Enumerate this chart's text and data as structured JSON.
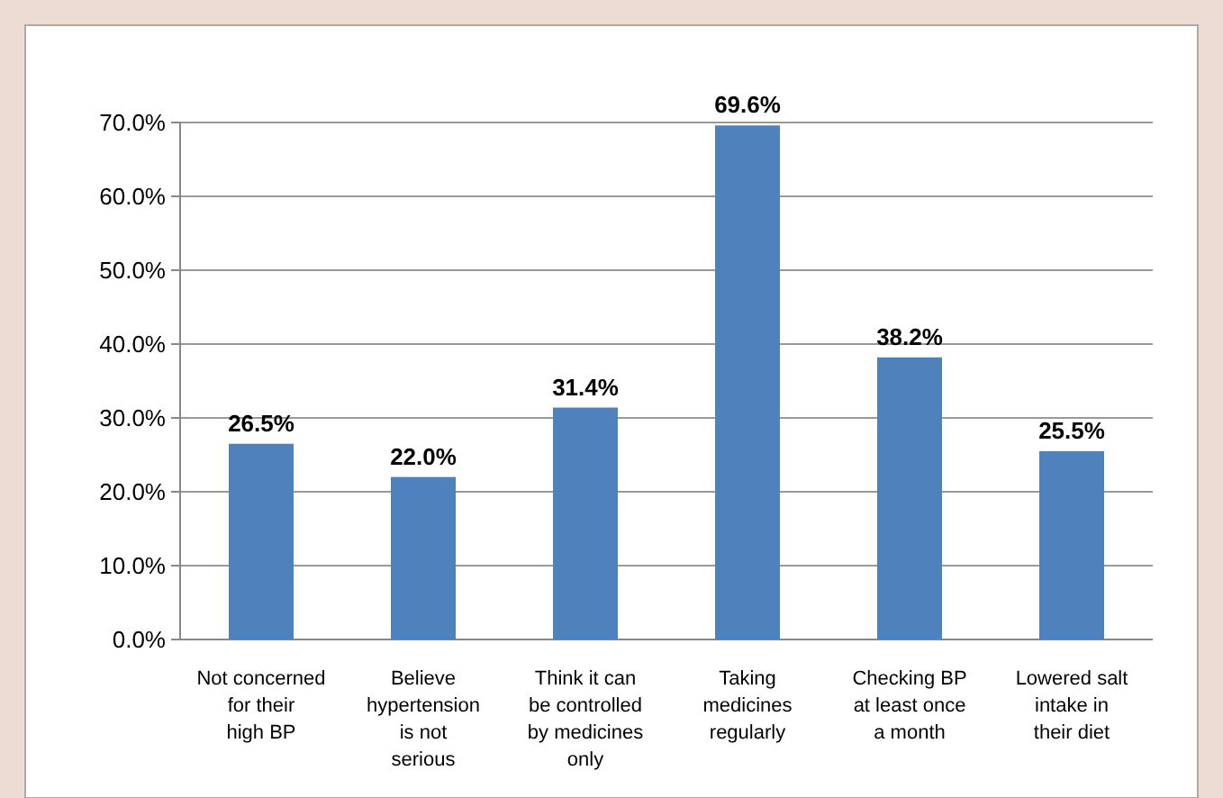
{
  "chart_data": {
    "type": "bar",
    "categories": [
      "Not concerned for their high BP",
      "Believe hypertension is not serious",
      "Think it can be controlled by medicines only",
      "Taking medicines regularly",
      "Checking BP at least once a month",
      "Lowered salt intake in their diet"
    ],
    "values": [
      26.5,
      22.0,
      31.4,
      69.6,
      38.2,
      25.5
    ],
    "value_labels": [
      "26.5%",
      "22.0%",
      "31.4%",
      "69.6%",
      "38.2%",
      "25.5%"
    ],
    "color": "#4f81bd",
    "ylim": [
      0,
      70
    ],
    "yticks": [
      {
        "value": 0,
        "label": "0.0%"
      },
      {
        "value": 10,
        "label": "10.0%"
      },
      {
        "value": 20,
        "label": "20.0%"
      },
      {
        "value": 30,
        "label": "30.0%"
      },
      {
        "value": 40,
        "label": "40.0%"
      },
      {
        "value": 50,
        "label": "50.0%"
      },
      {
        "value": 60,
        "label": "60.0%"
      },
      {
        "value": 70,
        "label": "70.0%"
      }
    ],
    "grid": "y"
  }
}
